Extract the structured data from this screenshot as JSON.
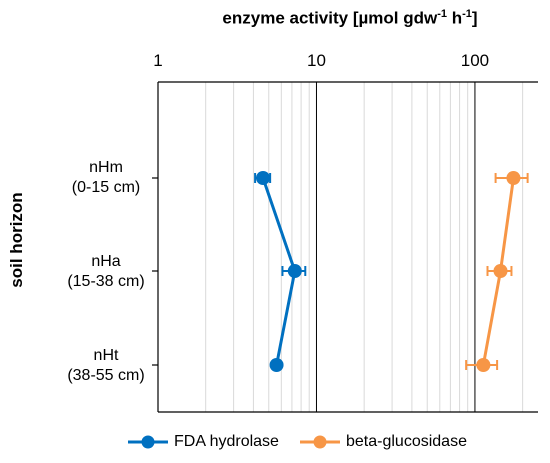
{
  "chart_data": {
    "type": "scatter",
    "title": "enzyme activity [µmol gdw",
    "title_sup1": "-1",
    "title_mid": " h",
    "title_sup2": "-1",
    "title_end": "]",
    "ylabel": "soil horizon",
    "xlabel": "",
    "x_scale": "log",
    "xlim": [
      1,
      250
    ],
    "x_ticks": [
      "1",
      "10",
      "100"
    ],
    "x_tick_values": [
      1,
      10,
      100
    ],
    "categories": [
      {
        "name": "nHm",
        "range": "(0-15 cm)"
      },
      {
        "name": "nHa",
        "range": "(15-38 cm)"
      },
      {
        "name": "nHt",
        "range": "(38-55 cm)"
      }
    ],
    "grid": "vertical minor log gridlines",
    "legend_position": "bottom",
    "series": [
      {
        "name": "FDA hydrolase",
        "color": "#0070c0",
        "values": [
          4.6,
          7.3,
          5.6
        ],
        "err_low": [
          0.5,
          1.2,
          0.3
        ],
        "err_high": [
          0.5,
          1.2,
          0.3
        ]
      },
      {
        "name": "beta-glucosidase",
        "color": "#f79646",
        "values": [
          175,
          145,
          113
        ],
        "err_low": [
          40,
          25,
          25
        ],
        "err_high": [
          40,
          25,
          25
        ]
      }
    ]
  }
}
